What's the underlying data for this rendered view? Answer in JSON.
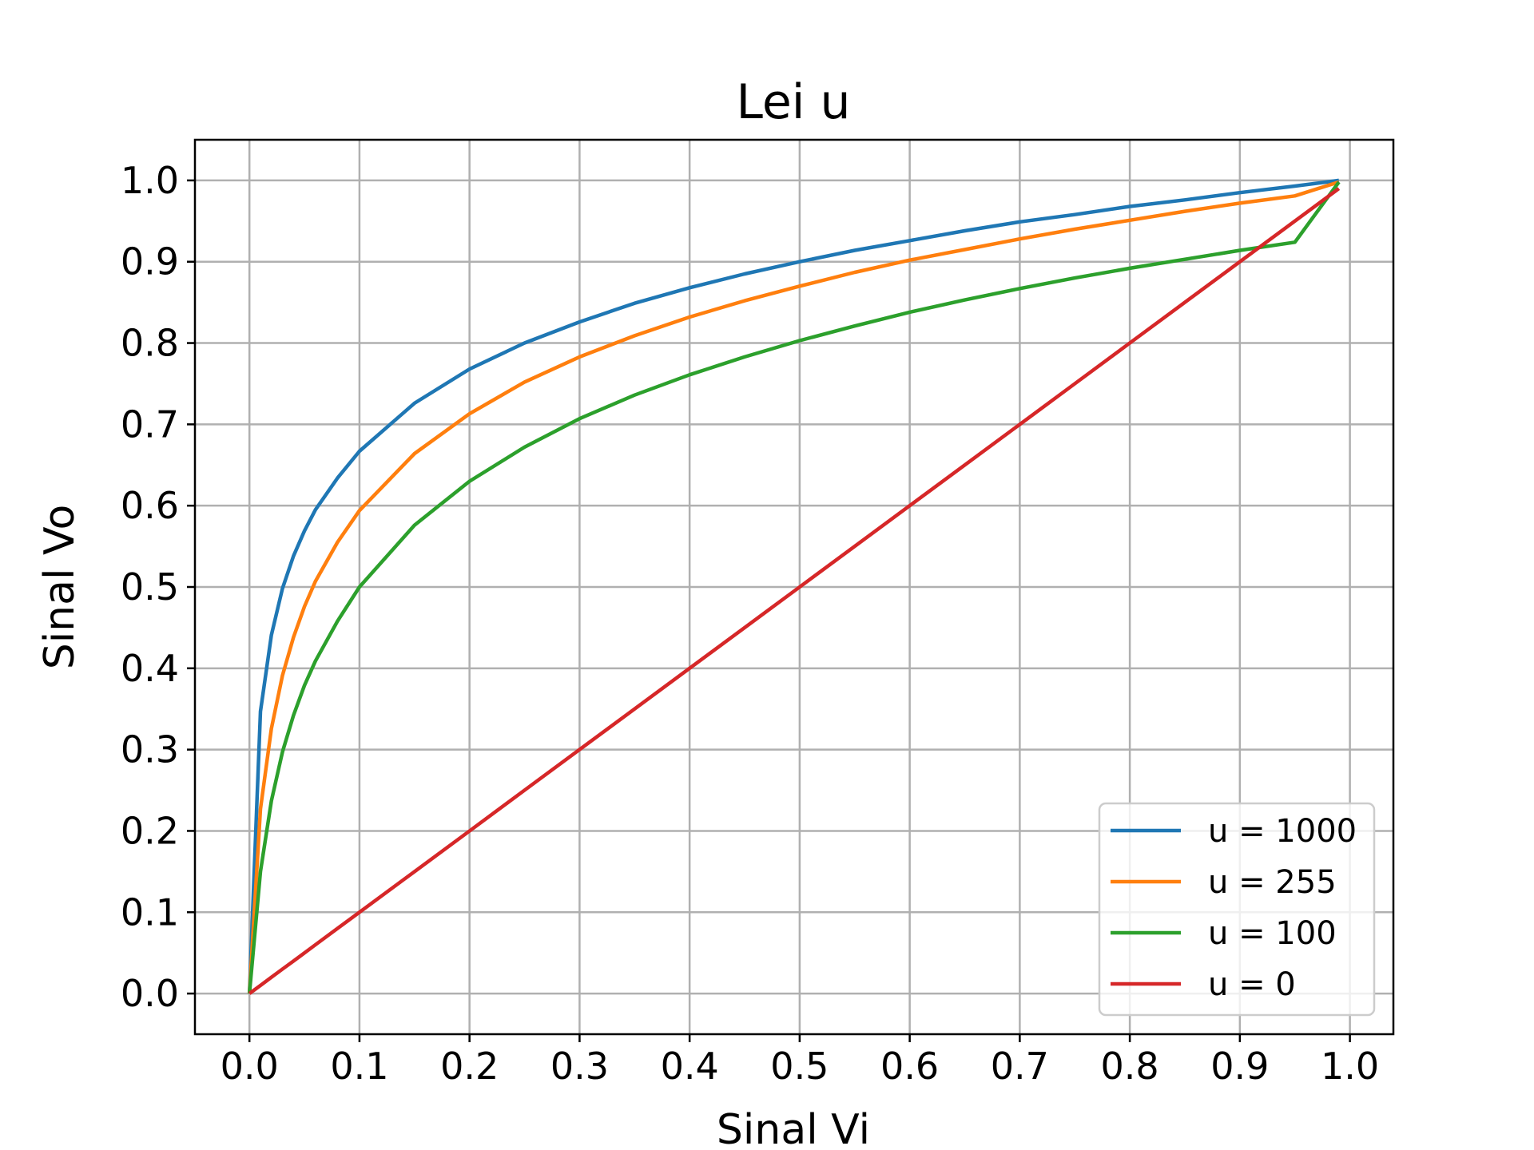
{
  "chart_data": {
    "type": "line",
    "title": "Lei u",
    "xlabel": "Sinal Vi",
    "ylabel": "Sinal Vo",
    "xlim": [
      -0.0495,
      1.0395
    ],
    "ylim": [
      -0.05,
      1.05
    ],
    "xticks": [
      0.0,
      0.1,
      0.2,
      0.3,
      0.4,
      0.5,
      0.6,
      0.7,
      0.8,
      0.9,
      1.0
    ],
    "xtick_labels": [
      "0.0",
      "0.1",
      "0.2",
      "0.3",
      "0.4",
      "0.5",
      "0.6",
      "0.7",
      "0.8",
      "0.9",
      "1.0"
    ],
    "yticks": [
      0.0,
      0.1,
      0.2,
      0.3,
      0.4,
      0.5,
      0.6,
      0.7,
      0.8,
      0.9,
      1.0
    ],
    "ytick_labels": [
      "0.0",
      "0.1",
      "0.2",
      "0.3",
      "0.4",
      "0.5",
      "0.6",
      "0.7",
      "0.8",
      "0.9",
      "1.0"
    ],
    "grid": true,
    "legend_position": "lower-right",
    "x": [
      0.0,
      0.01,
      0.02,
      0.03,
      0.04,
      0.05,
      0.06,
      0.08,
      0.1,
      0.15,
      0.2,
      0.25,
      0.3,
      0.35,
      0.4,
      0.45,
      0.5,
      0.55,
      0.6,
      0.65,
      0.7,
      0.75,
      0.8,
      0.85,
      0.9,
      0.95,
      0.99
    ],
    "series": [
      {
        "name": "u = 1000",
        "color": "#1f77b4",
        "values": [
          0.0,
          0.347,
          0.441,
          0.498,
          0.538,
          0.569,
          0.595,
          0.634,
          0.667,
          0.726,
          0.768,
          0.8,
          0.826,
          0.849,
          0.868,
          0.885,
          0.9,
          0.914,
          0.926,
          0.938,
          0.949,
          0.958,
          0.968,
          0.976,
          0.985,
          0.993,
          1.0
        ]
      },
      {
        "name": "u = 255",
        "color": "#ff7f0e",
        "values": [
          0.0,
          0.227,
          0.326,
          0.391,
          0.438,
          0.476,
          0.507,
          0.555,
          0.594,
          0.664,
          0.713,
          0.752,
          0.783,
          0.809,
          0.832,
          0.852,
          0.87,
          0.887,
          0.902,
          0.915,
          0.928,
          0.94,
          0.951,
          0.962,
          0.972,
          0.981,
          0.998
        ]
      },
      {
        "name": "u = 100",
        "color": "#2ca02c",
        "values": [
          0.0,
          0.15,
          0.237,
          0.297,
          0.342,
          0.379,
          0.409,
          0.458,
          0.5,
          0.576,
          0.63,
          0.672,
          0.707,
          0.736,
          0.761,
          0.783,
          0.803,
          0.821,
          0.838,
          0.853,
          0.867,
          0.88,
          0.892,
          0.903,
          0.914,
          0.924,
          0.998
        ]
      },
      {
        "name": "u = 0",
        "color": "#d62728",
        "values": [
          0.0,
          0.01,
          0.02,
          0.03,
          0.04,
          0.05,
          0.06,
          0.08,
          0.1,
          0.15,
          0.2,
          0.25,
          0.3,
          0.35,
          0.4,
          0.45,
          0.5,
          0.55,
          0.6,
          0.65,
          0.7,
          0.75,
          0.8,
          0.85,
          0.9,
          0.95,
          0.99
        ]
      }
    ]
  }
}
